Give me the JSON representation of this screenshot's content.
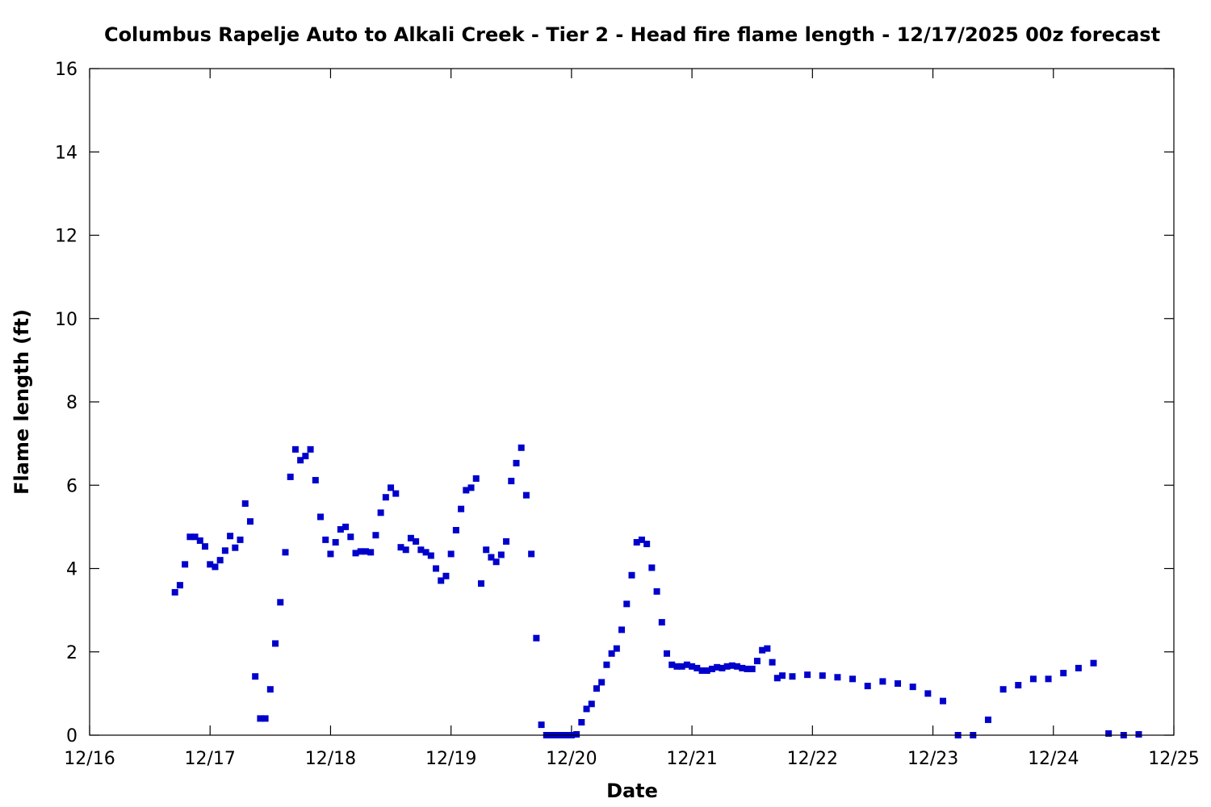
{
  "chart_data": {
    "type": "scatter",
    "title": "Columbus Rapelje Auto to Alkali Creek - Tier 2 - Head fire flame length - 12/17/2025 00z forecast",
    "xlabel": "Date",
    "ylabel": "Flame length (ft)",
    "xlim": [
      "12/16",
      "12/25"
    ],
    "ylim": [
      0,
      16
    ],
    "xticks": [
      "12/16",
      "12/17",
      "12/18",
      "12/19",
      "12/20",
      "12/21",
      "12/22",
      "12/23",
      "12/24",
      "12/25"
    ],
    "yticks": [
      "0",
      "2",
      "4",
      "6",
      "8",
      "10",
      "12",
      "14",
      "16"
    ],
    "grid": false,
    "legend": "none",
    "marker_color": "#0000cc",
    "series": [
      {
        "values": [
          [
            "12/16 17:00",
            3.43
          ],
          [
            "12/16 18:00",
            3.6
          ],
          [
            "12/16 19:00",
            4.1
          ],
          [
            "12/16 20:00",
            4.76
          ],
          [
            "12/16 21:00",
            4.76
          ],
          [
            "12/16 22:00",
            4.67
          ],
          [
            "12/16 23:00",
            4.53
          ],
          [
            "12/17 00:00",
            4.1
          ],
          [
            "12/17 01:00",
            4.04
          ],
          [
            "12/17 02:00",
            4.2
          ],
          [
            "12/17 03:00",
            4.43
          ],
          [
            "12/17 04:00",
            4.78
          ],
          [
            "12/17 05:00",
            4.5
          ],
          [
            "12/17 06:00",
            4.69
          ],
          [
            "12/17 07:00",
            5.56
          ],
          [
            "12/17 08:00",
            5.13
          ],
          [
            "12/17 09:00",
            1.41
          ],
          [
            "12/17 10:00",
            0.4
          ],
          [
            "12/17 11:00",
            0.4
          ],
          [
            "12/17 12:00",
            1.1
          ],
          [
            "12/17 13:00",
            2.2
          ],
          [
            "12/17 14:00",
            3.19
          ],
          [
            "12/17 15:00",
            4.39
          ],
          [
            "12/17 16:00",
            6.2
          ],
          [
            "12/17 17:00",
            6.86
          ],
          [
            "12/17 18:00",
            6.6
          ],
          [
            "12/17 19:00",
            6.7
          ],
          [
            "12/17 20:00",
            6.86
          ],
          [
            "12/17 21:00",
            6.12
          ],
          [
            "12/17 22:00",
            5.24
          ],
          [
            "12/17 23:00",
            4.69
          ],
          [
            "12/18 00:00",
            4.35
          ],
          [
            "12/18 01:00",
            4.63
          ],
          [
            "12/18 02:00",
            4.94
          ],
          [
            "12/18 03:00",
            5.0
          ],
          [
            "12/18 04:00",
            4.76
          ],
          [
            "12/18 05:00",
            4.37
          ],
          [
            "12/18 06:00",
            4.41
          ],
          [
            "12/18 07:00",
            4.41
          ],
          [
            "12/18 08:00",
            4.39
          ],
          [
            "12/18 09:00",
            4.8
          ],
          [
            "12/18 10:00",
            5.34
          ],
          [
            "12/18 11:00",
            5.71
          ],
          [
            "12/18 12:00",
            5.94
          ],
          [
            "12/18 13:00",
            5.8
          ],
          [
            "12/18 14:00",
            4.51
          ],
          [
            "12/18 15:00",
            4.45
          ],
          [
            "12/18 16:00",
            4.73
          ],
          [
            "12/18 17:00",
            4.65
          ],
          [
            "12/18 18:00",
            4.45
          ],
          [
            "12/18 19:00",
            4.39
          ],
          [
            "12/18 20:00",
            4.31
          ],
          [
            "12/18 21:00",
            4.0
          ],
          [
            "12/18 22:00",
            3.71
          ],
          [
            "12/18 23:00",
            3.82
          ],
          [
            "12/19 00:00",
            4.35
          ],
          [
            "12/19 01:00",
            4.92
          ],
          [
            "12/19 02:00",
            5.43
          ],
          [
            "12/19 03:00",
            5.88
          ],
          [
            "12/19 04:00",
            5.94
          ],
          [
            "12/19 05:00",
            6.16
          ],
          [
            "12/19 06:00",
            3.64
          ],
          [
            "12/19 07:00",
            4.45
          ],
          [
            "12/19 08:00",
            4.27
          ],
          [
            "12/19 09:00",
            4.16
          ],
          [
            "12/19 10:00",
            4.33
          ],
          [
            "12/19 11:00",
            4.65
          ],
          [
            "12/19 12:00",
            6.1
          ],
          [
            "12/19 13:00",
            6.53
          ],
          [
            "12/19 14:00",
            6.9
          ],
          [
            "12/19 15:00",
            5.76
          ],
          [
            "12/19 16:00",
            4.35
          ],
          [
            "12/19 17:00",
            2.33
          ],
          [
            "12/19 18:00",
            0.25
          ],
          [
            "12/19 19:00",
            0.0
          ],
          [
            "12/19 20:00",
            0.0
          ],
          [
            "12/19 21:00",
            0.0
          ],
          [
            "12/19 22:00",
            0.0
          ],
          [
            "12/19 23:00",
            0.0
          ],
          [
            "12/20 00:00",
            0.0
          ],
          [
            "12/20 01:00",
            0.02
          ],
          [
            "12/20 02:00",
            0.31
          ],
          [
            "12/20 03:00",
            0.63
          ],
          [
            "12/20 04:00",
            0.75
          ],
          [
            "12/20 05:00",
            1.12
          ],
          [
            "12/20 06:00",
            1.27
          ],
          [
            "12/20 07:00",
            1.69
          ],
          [
            "12/20 08:00",
            1.96
          ],
          [
            "12/20 09:00",
            2.08
          ],
          [
            "12/20 10:00",
            2.53
          ],
          [
            "12/20 11:00",
            3.15
          ],
          [
            "12/20 12:00",
            3.84
          ],
          [
            "12/20 13:00",
            4.63
          ],
          [
            "12/20 14:00",
            4.69
          ],
          [
            "12/20 15:00",
            4.59
          ],
          [
            "12/20 16:00",
            4.02
          ],
          [
            "12/20 17:00",
            3.45
          ],
          [
            "12/20 18:00",
            2.71
          ],
          [
            "12/20 19:00",
            1.96
          ],
          [
            "12/20 20:00",
            1.69
          ],
          [
            "12/20 21:00",
            1.65
          ],
          [
            "12/20 22:00",
            1.65
          ],
          [
            "12/20 23:00",
            1.69
          ],
          [
            "12/21 00:00",
            1.65
          ],
          [
            "12/21 01:00",
            1.61
          ],
          [
            "12/21 02:00",
            1.55
          ],
          [
            "12/21 03:00",
            1.55
          ],
          [
            "12/21 04:00",
            1.59
          ],
          [
            "12/21 05:00",
            1.63
          ],
          [
            "12/21 06:00",
            1.61
          ],
          [
            "12/21 07:00",
            1.65
          ],
          [
            "12/21 08:00",
            1.67
          ],
          [
            "12/21 09:00",
            1.65
          ],
          [
            "12/21 10:00",
            1.61
          ],
          [
            "12/21 11:00",
            1.59
          ],
          [
            "12/21 12:00",
            1.59
          ],
          [
            "12/21 13:00",
            1.78
          ],
          [
            "12/21 14:00",
            2.04
          ],
          [
            "12/21 15:00",
            2.08
          ],
          [
            "12/21 16:00",
            1.75
          ],
          [
            "12/21 17:00",
            1.37
          ],
          [
            "12/21 18:00",
            1.43
          ],
          [
            "12/21 20:00",
            1.41
          ],
          [
            "12/21 23:00",
            1.45
          ],
          [
            "12/22 02:00",
            1.43
          ],
          [
            "12/22 05:00",
            1.39
          ],
          [
            "12/22 08:00",
            1.35
          ],
          [
            "12/22 11:00",
            1.18
          ],
          [
            "12/22 14:00",
            1.29
          ],
          [
            "12/22 17:00",
            1.24
          ],
          [
            "12/22 20:00",
            1.16
          ],
          [
            "12/22 23:00",
            1.0
          ],
          [
            "12/23 02:00",
            0.82
          ],
          [
            "12/23 05:00",
            0.0
          ],
          [
            "12/23 08:00",
            0.0
          ],
          [
            "12/23 11:00",
            0.37
          ],
          [
            "12/23 14:00",
            1.1
          ],
          [
            "12/23 17:00",
            1.2
          ],
          [
            "12/23 20:00",
            1.35
          ],
          [
            "12/23 23:00",
            1.35
          ],
          [
            "12/24 02:00",
            1.49
          ],
          [
            "12/24 05:00",
            1.61
          ],
          [
            "12/24 08:00",
            1.73
          ],
          [
            "12/24 11:00",
            0.04
          ],
          [
            "12/24 14:00",
            0.0
          ],
          [
            "12/24 17:00",
            0.02
          ]
        ]
      }
    ]
  }
}
